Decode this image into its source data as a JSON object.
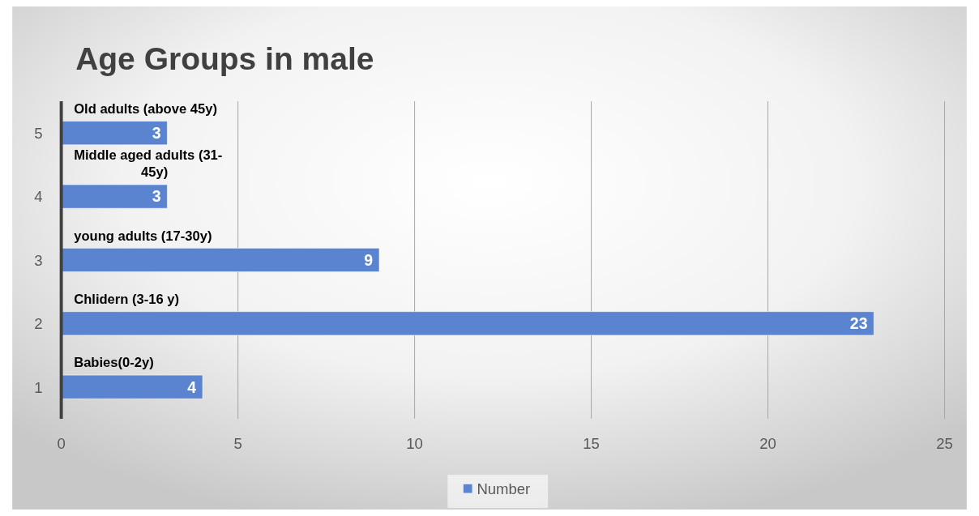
{
  "chart_data": {
    "type": "bar",
    "orientation": "horizontal",
    "title": "Age Groups in male",
    "categories": [
      "5",
      "4",
      "3",
      "2",
      "1"
    ],
    "series": [
      {
        "name": "Number",
        "color": "#5b84d0",
        "values": [
          3,
          3,
          9,
          23,
          4
        ]
      }
    ],
    "xlim": [
      0,
      25
    ],
    "xticks": [
      0,
      5,
      10,
      15,
      20,
      25
    ],
    "grid": "x",
    "data_labels": true,
    "legend": "bottom",
    "annotations": [
      "Old adults (above 45y)",
      "Middle aged adults (31-45y)",
      "young adults (17-30y)",
      "Chlidern (3-16 y)",
      "Babies(0-2y)"
    ]
  }
}
